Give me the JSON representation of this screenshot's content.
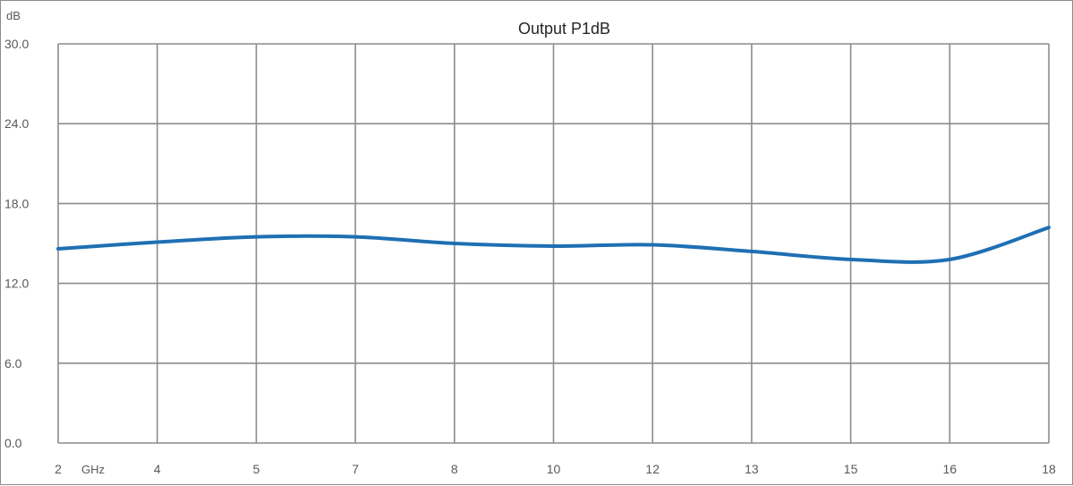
{
  "chart_data": {
    "type": "line",
    "title": "Output P1dB",
    "ylabel": "dB",
    "xlabel": "GHz",
    "ylim": [
      0,
      30
    ],
    "y_ticks": [
      "0.0",
      "6.0",
      "12.0",
      "18.0",
      "24.0",
      "30.0"
    ],
    "x_tick_labels": [
      "2",
      "4",
      "5",
      "7",
      "8",
      "10",
      "12",
      "13",
      "15",
      "16",
      "18"
    ],
    "grid": true,
    "legend": "none",
    "series": [
      {
        "color": "#1f6fb4",
        "x": [
          "2",
          "4",
          "5",
          "7",
          "8",
          "10",
          "12",
          "13",
          "15",
          "16",
          "18"
        ],
        "values": [
          14.6,
          15.1,
          15.5,
          15.5,
          15.0,
          14.8,
          14.9,
          14.4,
          13.8,
          13.8,
          16.2
        ]
      }
    ]
  }
}
